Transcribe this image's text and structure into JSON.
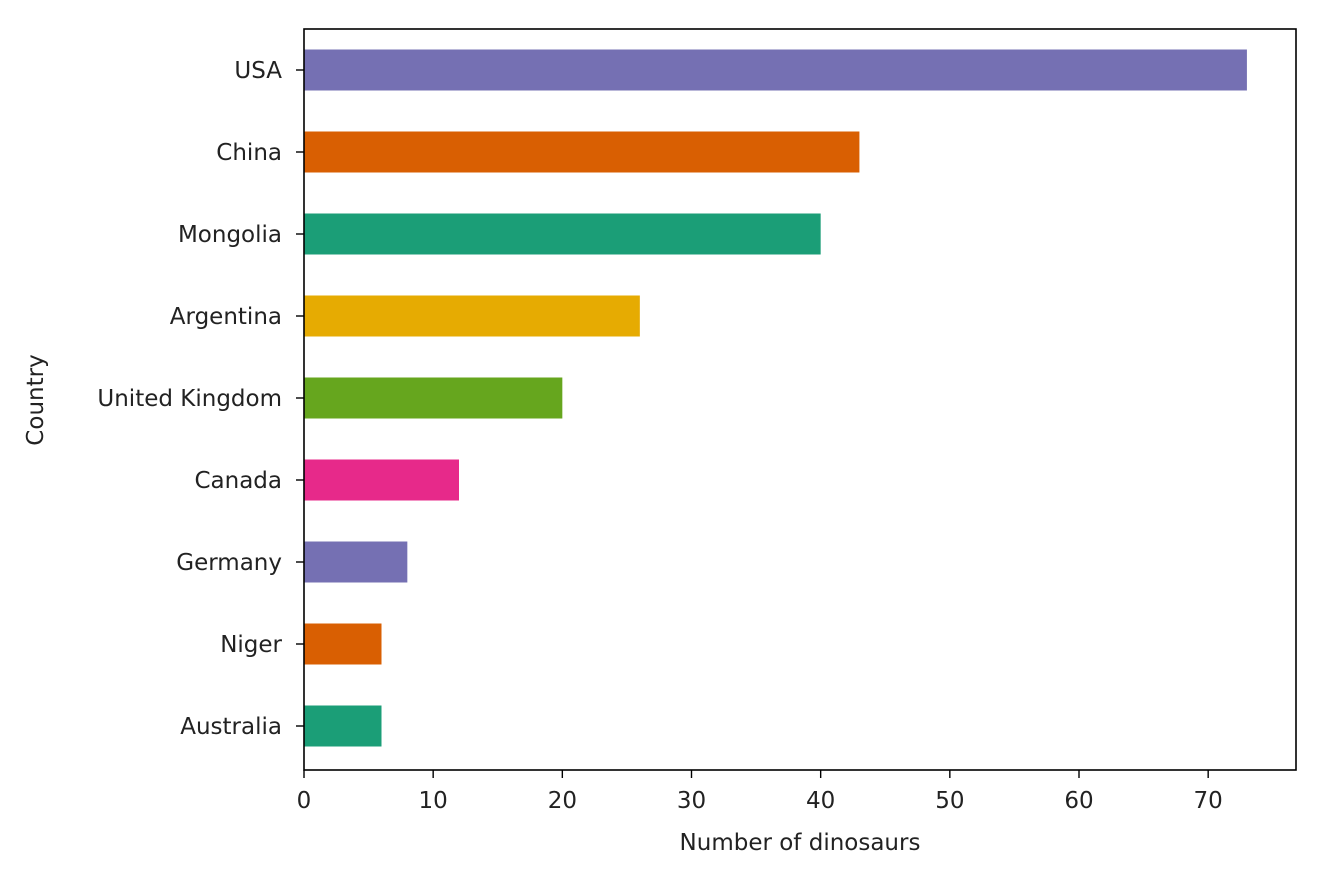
{
  "chart_data": {
    "type": "bar",
    "orientation": "horizontal",
    "title": "",
    "xlabel": "Number of dinosaurs",
    "ylabel": "Country",
    "categories": [
      "USA",
      "China",
      "Mongolia",
      "Argentina",
      "United Kingdom",
      "Canada",
      "Germany",
      "Niger",
      "Australia"
    ],
    "values": [
      73,
      43,
      40,
      26,
      20,
      12,
      8,
      6,
      6
    ],
    "colors": [
      "#7570b3",
      "#d95f02",
      "#1b9e77",
      "#e6ab02",
      "#66a61e",
      "#e7298a",
      "#7570b3",
      "#d95f02",
      "#1b9e77"
    ],
    "xlim": [
      0,
      76.8
    ],
    "xticks": [
      "0",
      "10",
      "20",
      "30",
      "40",
      "50",
      "60",
      "70"
    ],
    "grid": false,
    "legend": "none"
  }
}
